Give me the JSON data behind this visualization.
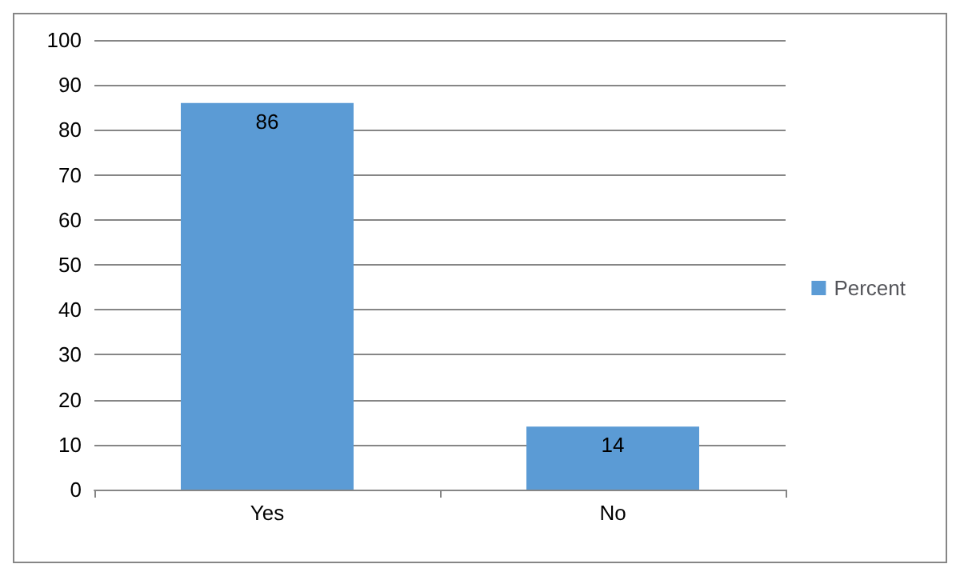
{
  "chart_data": {
    "type": "bar",
    "categories": [
      "Yes",
      "No"
    ],
    "series": [
      {
        "name": "Percent",
        "color": "#5b9bd5",
        "values": [
          86,
          14
        ]
      }
    ],
    "ylim": [
      0,
      100
    ],
    "yticks": [
      0,
      10,
      20,
      30,
      40,
      50,
      60,
      70,
      80,
      90,
      100
    ],
    "grid": "y",
    "legend": "right",
    "data_labels": true
  }
}
